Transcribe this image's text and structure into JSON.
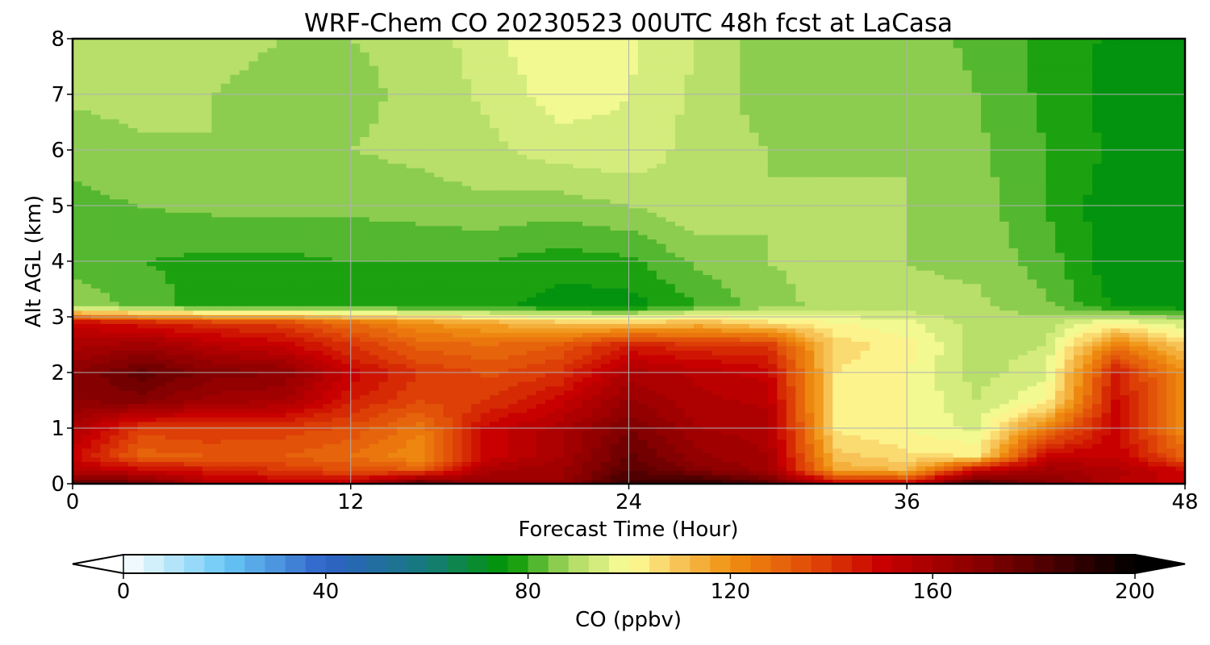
{
  "chart_data": {
    "type": "heatmap",
    "title": "WRF-Chem CO  20230523 00UTC 48h fcst at LaCasa",
    "xlabel": "Forecast Time (Hour)",
    "ylabel": "Alt AGL (km)",
    "xlim": [
      0,
      48
    ],
    "ylim": [
      0,
      8
    ],
    "xticks": [
      0,
      12,
      24,
      36,
      48
    ],
    "yticks": [
      0,
      1,
      2,
      3,
      4,
      5,
      6,
      7,
      8
    ],
    "grid": true,
    "x": [
      0,
      3,
      6,
      9,
      12,
      15,
      18,
      21,
      24,
      27,
      30,
      33,
      36,
      39,
      42,
      45,
      48
    ],
    "y": [
      0,
      0.25,
      0.5,
      1,
      1.5,
      2,
      2.5,
      2.9,
      3.2,
      4,
      5,
      6,
      7,
      8
    ],
    "z": [
      [
        176,
        176,
        155,
        154,
        152,
        180,
        165,
        165,
        188,
        190,
        180,
        152,
        150,
        183,
        170,
        155,
        150
      ],
      [
        155,
        150,
        145,
        140,
        135,
        132,
        160,
        162,
        180,
        170,
        162,
        115,
        112,
        150,
        162,
        158,
        148
      ],
      [
        150,
        130,
        132,
        132,
        128,
        120,
        150,
        160,
        177,
        165,
        160,
        110,
        105,
        104,
        150,
        152,
        130
      ],
      [
        158,
        138,
        140,
        138,
        135,
        125,
        150,
        158,
        172,
        160,
        158,
        103,
        100,
        95,
        125,
        150,
        120
      ],
      [
        168,
        170,
        162,
        160,
        145,
        136,
        140,
        150,
        165,
        157,
        155,
        102,
        100,
        92,
        100,
        148,
        122
      ],
      [
        168,
        178,
        170,
        168,
        150,
        140,
        135,
        140,
        158,
        155,
        150,
        104,
        100,
        90,
        95,
        145,
        120
      ],
      [
        158,
        162,
        155,
        150,
        140,
        130,
        128,
        132,
        145,
        140,
        140,
        106,
        102,
        90,
        92,
        125,
        108
      ],
      [
        150,
        145,
        140,
        138,
        128,
        120,
        115,
        110,
        108,
        112,
        105,
        100,
        97,
        90,
        90,
        100,
        93
      ],
      [
        88,
        82,
        78,
        78,
        78,
        78,
        77,
        74,
        74,
        80,
        86,
        90,
        89,
        89,
        85,
        75,
        73
      ],
      [
        82,
        80,
        79,
        79,
        80,
        80,
        80,
        78,
        79,
        85,
        88,
        90,
        88,
        87,
        82,
        73,
        72
      ],
      [
        83,
        84,
        85,
        85,
        85,
        86,
        87,
        86,
        88,
        91,
        88,
        89,
        88,
        86,
        80,
        73,
        72
      ],
      [
        85,
        87,
        88,
        87,
        88,
        89,
        91,
        94,
        95,
        90,
        88,
        87,
        88,
        85,
        80,
        75,
        73
      ],
      [
        89,
        90,
        88,
        87,
        87,
        89,
        93,
        98,
        96,
        91,
        86,
        87,
        87,
        84,
        79,
        74,
        73
      ],
      [
        91,
        92,
        89,
        88,
        88,
        89,
        95,
        100,
        97,
        92,
        86,
        87,
        86,
        83,
        79,
        75,
        74
      ]
    ]
  },
  "colorbar": {
    "label": "CO  (ppbv)",
    "min": 0,
    "max": 200,
    "step": 4,
    "ticks": [
      0,
      40,
      80,
      120,
      160,
      200
    ],
    "extend": "both",
    "colors": {
      "v0": "#ffffff",
      "v20": "#69c8f5",
      "v40": "#2e62c8",
      "v60": "#167a7a",
      "v76": "#009600",
      "v88": "#a8d860",
      "v100": "#ffff99",
      "v110": "#f7c357",
      "v120": "#f09010",
      "v136": "#e04a08",
      "v150": "#c80000",
      "v170": "#850000",
      "v200": "#000000"
    }
  }
}
